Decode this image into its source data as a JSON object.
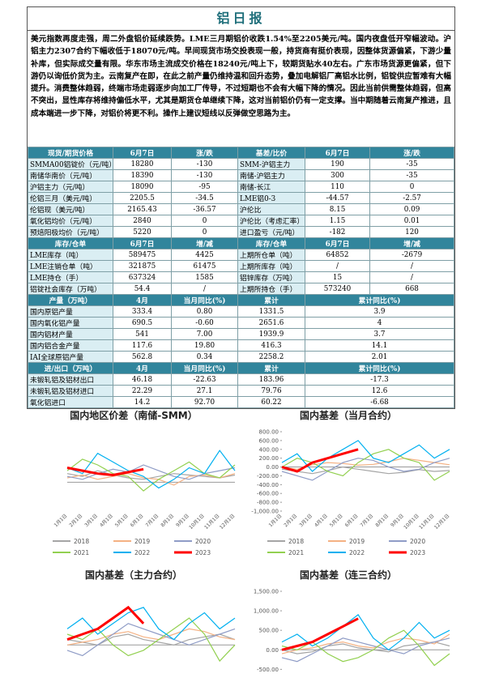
{
  "title": "铝日报",
  "summary": "美元指数再度走强，周二外盘铝价延续跌势。LME三月期铝价收跌1.54%至2205美元/吨。国内夜盘低开窄幅波动。沪铝主力2307合约下幅收低于18070元/吨。早间现货市场交投表现一般，持货商有挺价表现，因整体货源偏紧，下游少量补库，但实际成交量有限。华东市场主流成交价格在18240元/吨上下，较期货贴水40左右。广东市场货源更偏紧，但下游仍以询低价货为主。云南复产在即，在此之前产量仍维持温和回升态势，叠加电解铝厂高铝水比例，铝锭供应暂难有大幅提升。消费整体趋弱，终端市场走弱逐步向加工厂传导，不过短期也不会有大幅下降的情况。因此当前供需整体趋弱，但高不突出，显性库存将维持偏低水平，尤其是期货仓单继续下降，这对当前铝价仍有一定支撑。当中期随着云南复产推进，且成本端进一步下降，对铝价将更不利。操作上建议短线以反弹做空思路为主。",
  "tables": [
    {
      "header": [
        "现货/期货价格",
        "6月7日",
        "涨/跌",
        "基差/比价",
        "6月7日",
        "涨/跌"
      ],
      "rows": [
        [
          "SMMA00铝锭价（元/吨）",
          "18280",
          "-130",
          "SMM-沪铝主力",
          "190",
          "-35"
        ],
        [
          "南储华南价（元/吨）",
          "18390",
          "-130",
          "南储-沪铝主力",
          "300",
          "-35"
        ],
        [
          "沪铝主力（元/吨）",
          "18090",
          "-95",
          "南储-长江",
          "110",
          "0"
        ],
        [
          "伦铝三月（美元/吨）",
          "2205.5",
          "-34.5",
          "LME铝0-3",
          "-44.57",
          "-2.57"
        ],
        [
          "伦铝现（美元/吨）",
          "2165.43",
          "-36.57",
          "沪伦比",
          "8.15",
          "0.09"
        ],
        [
          "氧化铝均价（元/吨）",
          "2840",
          "0",
          "沪伦比（考虑汇率）",
          "1.15",
          "0.01"
        ],
        [
          "预焙阳极均价（元/吨）",
          "5220",
          "0",
          "进口盈亏（元/吨）",
          "-182",
          "120"
        ]
      ]
    },
    {
      "header": [
        "库存/仓单",
        "6月7日",
        "增/减",
        "库存/仓单",
        "6月7日",
        "增/减"
      ],
      "rows": [
        [
          "LME库存（吨）",
          "589475",
          "4425",
          "上期所仓单（吨）",
          "64852",
          "-2679"
        ],
        [
          "LME注销仓单（吨）",
          "321875",
          "61475",
          "上期所库存（吨）",
          "/",
          "/"
        ],
        [
          "LME持仓（手）",
          "637324",
          "1585",
          "铝锌库存（万吨）",
          "15",
          "/"
        ],
        [
          "铝锭社会库存（万吨）",
          "54.4",
          "/",
          "上期所持仓（手）",
          "573240",
          "668"
        ]
      ]
    },
    {
      "header": [
        "产量（万吨）",
        "4月",
        "当月同比(%)",
        "累计",
        "累计同比(%)"
      ],
      "rows": [
        [
          "国内原铝产量",
          "333.4",
          "0.80",
          "1331.5",
          "3.9"
        ],
        [
          "国内氧化铝产量",
          "690.5",
          "-0.60",
          "2651.6",
          "4"
        ],
        [
          "国内铝材产量",
          "541",
          "7.00",
          "1939.9",
          "3.7"
        ],
        [
          "国内铝合金产量",
          "117.6",
          "19.80",
          "416.3",
          "14.1"
        ],
        [
          "IAI全球原铝产量",
          "562.8",
          "0.34",
          "2258.2",
          "2.01"
        ]
      ]
    },
    {
      "header": [
        "进/出口（万吨）",
        "4月",
        "当月同比(%)",
        "累计",
        "累计同比(%)"
      ],
      "rows": [
        [
          "未锻轧铝及铝材出口",
          "46.18",
          "-22.63",
          "183.96",
          "-17.3"
        ],
        [
          "未锻轧铝及铝材进口",
          "22.29",
          "27.1",
          "79.76",
          "12.6"
        ],
        [
          "氧化铝进口",
          "14.2",
          "92.70",
          "60.22",
          "-6.68"
        ]
      ]
    }
  ],
  "chart_data": [
    {
      "type": "line",
      "title": "国内地区价差（南储-SMM）",
      "categories": [
        "1月1日",
        "2月1日",
        "3月1日",
        "4月1日",
        "5月1日",
        "6月1日",
        "7月1日",
        "8月1日",
        "9月1日",
        "10月1日",
        "11月1日",
        "12月1日"
      ],
      "ylim": [
        -200,
        350
      ],
      "series": [
        {
          "name": "2018",
          "color": "#a5a5a5",
          "values": [
            60,
            40,
            80,
            50,
            30,
            20,
            40,
            60,
            50,
            40,
            30,
            50
          ]
        },
        {
          "name": "2019",
          "color": "#f4b183",
          "values": [
            30,
            50,
            20,
            40,
            60,
            30,
            20,
            -20,
            40,
            50,
            30,
            60
          ]
        },
        {
          "name": "2020",
          "color": "#8f9cc6",
          "values": [
            40,
            20,
            60,
            90,
            70,
            120,
            80,
            40,
            20,
            60,
            80,
            100
          ]
        },
        {
          "name": "2021",
          "color": "#92d050",
          "values": [
            80,
            160,
            120,
            60,
            40,
            -60,
            20,
            80,
            140,
            60,
            30,
            120
          ]
        },
        {
          "name": "2022",
          "color": "#00b0f0",
          "values": [
            100,
            60,
            200,
            140,
            80,
            40,
            -40,
            20,
            100,
            60,
            220,
            80
          ]
        },
        {
          "name": "2023",
          "color": "#ff0000",
          "width": 3,
          "values": [
            100,
            80,
            60,
            50,
            70,
            90,
            null,
            null,
            null,
            null,
            null,
            null
          ]
        }
      ]
    },
    {
      "type": "line",
      "title": "国内基差（当月合约）",
      "categories": [
        "1月1日",
        "2月1日",
        "3月1日",
        "4月1日",
        "5月1日",
        "6月1日",
        "7月1日",
        "8月1日",
        "9月1日",
        "10月1日",
        "11月1日",
        "12月1日"
      ],
      "ylim": [
        -1000,
        800
      ],
      "yticks": [
        {
          "value": 800,
          "label": "800.00"
        },
        {
          "value": 600,
          "label": "600.00"
        },
        {
          "value": 400,
          "label": "400.00"
        },
        {
          "value": 200,
          "label": "200.00"
        },
        {
          "value": 0,
          "label": "0.00"
        },
        {
          "value": -200,
          "label": "-200.00"
        },
        {
          "value": -400,
          "label": "-400.00"
        },
        {
          "value": -600,
          "label": "-600.00"
        },
        {
          "value": -800,
          "label": "-800.00"
        },
        {
          "value": -1000,
          "label": "-1,000.00"
        }
      ],
      "series": [
        {
          "name": "2018",
          "color": "#a5a5a5",
          "values": [
            -50,
            -100,
            -150,
            -80,
            0,
            -50,
            -100,
            -150,
            -120,
            -60,
            -100,
            -80
          ]
        },
        {
          "name": "2019",
          "color": "#f4b183",
          "values": [
            0,
            -50,
            50,
            100,
            80,
            40,
            60,
            120,
            200,
            150,
            100,
            50
          ]
        },
        {
          "name": "2020",
          "color": "#8f9cc6",
          "values": [
            -100,
            -200,
            -300,
            -100,
            100,
            200,
            150,
            0,
            -100,
            -50,
            100,
            200
          ]
        },
        {
          "name": "2021",
          "color": "#92d050",
          "values": [
            0,
            200,
            100,
            -100,
            -200,
            100,
            300,
            400,
            200,
            100,
            -300,
            -100
          ]
        },
        {
          "name": "2022",
          "color": "#00b0f0",
          "values": [
            100,
            300,
            -100,
            200,
            400,
            600,
            200,
            100,
            300,
            500,
            200,
            400
          ]
        },
        {
          "name": "2023",
          "color": "#ff0000",
          "width": 3,
          "values": [
            0,
            -100,
            100,
            200,
            300,
            400,
            null,
            null,
            null,
            null,
            null,
            null
          ]
        }
      ]
    },
    {
      "type": "line",
      "title": "国内基差（主力合约）",
      "ylim": [
        -600,
        1000
      ],
      "series": [
        {
          "color": "#a5a5a5",
          "values": [
            100,
            50,
            0,
            150,
            200,
            100,
            50,
            0,
            100,
            150,
            200,
            100
          ]
        },
        {
          "color": "#f4b183",
          "values": [
            0,
            50,
            100,
            200,
            250,
            150,
            100,
            200,
            300,
            250,
            150,
            100
          ]
        },
        {
          "color": "#8f9cc6",
          "values": [
            -100,
            -200,
            0,
            200,
            400,
            300,
            200,
            100,
            0,
            100,
            200,
            300
          ]
        },
        {
          "color": "#92d050",
          "values": [
            200,
            100,
            300,
            0,
            -200,
            -100,
            100,
            300,
            500,
            200,
            -300,
            0
          ]
        },
        {
          "color": "#00b0f0",
          "values": [
            300,
            500,
            200,
            400,
            600,
            700,
            300,
            100,
            400,
            600,
            300,
            500
          ]
        },
        {
          "color": "#ff0000",
          "width": 3,
          "values": [
            100,
            200,
            300,
            500,
            700,
            400,
            null,
            null,
            null,
            null,
            null,
            null
          ]
        }
      ]
    },
    {
      "type": "line",
      "title": "国内基差（连三合约）",
      "ylim": [
        -700,
        1500
      ],
      "yticks": [
        {
          "value": 1500,
          "label": "1,500.00"
        },
        {
          "value": 1000,
          "label": "1,000.00"
        },
        {
          "value": 500,
          "label": "500.00"
        },
        {
          "value": 0,
          "label": "0.00"
        },
        {
          "value": -500,
          "label": "-500.00"
        }
      ],
      "series": [
        {
          "color": "#a5a5a5",
          "values": [
            0,
            -100,
            -50,
            100,
            150,
            50,
            0,
            -50,
            100,
            150,
            200,
            100
          ]
        },
        {
          "color": "#f4b183",
          "values": [
            -100,
            0,
            50,
            150,
            200,
            100,
            50,
            200,
            300,
            250,
            150,
            400
          ]
        },
        {
          "color": "#8f9cc6",
          "values": [
            -200,
            -300,
            -100,
            100,
            300,
            200,
            100,
            0,
            -100,
            100,
            200,
            300
          ]
        },
        {
          "color": "#92d050",
          "values": [
            100,
            0,
            200,
            -100,
            -300,
            -200,
            0,
            300,
            500,
            100,
            -400,
            -100
          ]
        },
        {
          "color": "#00b0f0",
          "values": [
            200,
            400,
            100,
            300,
            600,
            900,
            300,
            0,
            300,
            700,
            300,
            500
          ]
        },
        {
          "color": "#ff0000",
          "width": 3,
          "values": [
            0,
            100,
            200,
            400,
            600,
            800,
            null,
            null,
            null,
            null,
            null,
            null
          ]
        }
      ]
    }
  ]
}
